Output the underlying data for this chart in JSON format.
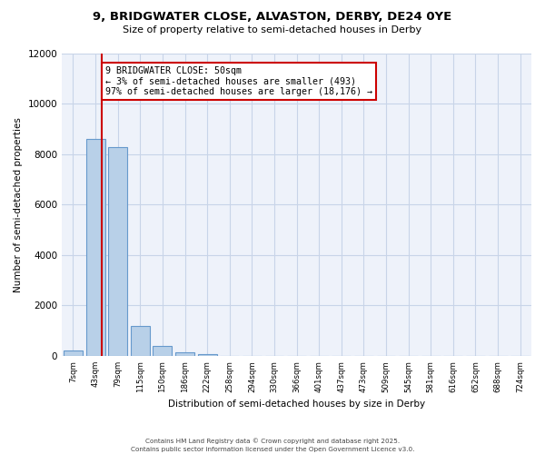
{
  "title_line1": "9, BRIDGWATER CLOSE, ALVASTON, DERBY, DE24 0YE",
  "title_line2": "Size of property relative to semi-detached houses in Derby",
  "xlabel": "Distribution of semi-detached houses by size in Derby",
  "ylabel": "Number of semi-detached properties",
  "background_color": "#eef2fa",
  "bar_color": "#b8d0e8",
  "bar_edge_color": "#6699cc",
  "bins": [
    "7sqm",
    "43sqm",
    "79sqm",
    "115sqm",
    "150sqm",
    "186sqm",
    "222sqm",
    "258sqm",
    "294sqm",
    "330sqm",
    "366sqm",
    "401sqm",
    "437sqm",
    "473sqm",
    "509sqm",
    "545sqm",
    "581sqm",
    "616sqm",
    "652sqm",
    "688sqm",
    "724sqm"
  ],
  "values": [
    200,
    8600,
    8300,
    1200,
    380,
    130,
    70,
    0,
    0,
    0,
    0,
    0,
    0,
    0,
    0,
    0,
    0,
    0,
    0,
    0,
    0
  ],
  "ylim": [
    0,
    12000
  ],
  "red_line_x": 1.28,
  "annotation_title": "9 BRIDGWATER CLOSE: 50sqm",
  "annotation_line2": "← 3% of semi-detached houses are smaller (493)",
  "annotation_line3": "97% of semi-detached houses are larger (18,176) →",
  "annotation_color": "#cc0000",
  "grid_color": "#c8d4e8",
  "yticks": [
    0,
    2000,
    4000,
    6000,
    8000,
    10000,
    12000
  ],
  "footer1": "Contains HM Land Registry data © Crown copyright and database right 2025.",
  "footer2": "Contains public sector information licensed under the Open Government Licence v3.0."
}
